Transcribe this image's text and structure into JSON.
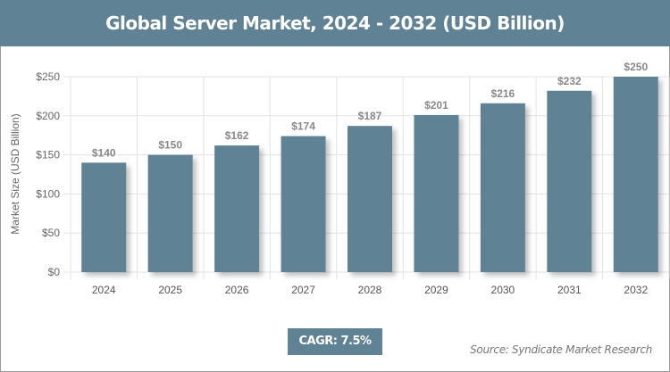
{
  "title": "Global Server Market, 2024 - 2032 (USD Billion)",
  "cagr_label": "CAGR: 7.5%",
  "source": "Source: Syndicate Market Research",
  "colors": {
    "bar": "#5f8394",
    "header": "#5f8394"
  },
  "chart_data": {
    "type": "bar",
    "title": "Global Server Market, 2024 - 2032 (USD Billion)",
    "xlabel": "",
    "ylabel": "Market Size (USD Billion)",
    "categories": [
      "2024",
      "2025",
      "2026",
      "2027",
      "2028",
      "2029",
      "2030",
      "2031",
      "2032"
    ],
    "values": [
      140,
      150,
      162,
      174,
      187,
      201,
      216,
      232,
      250
    ],
    "data_labels": [
      "$140",
      "$150",
      "$162",
      "$174",
      "$187",
      "$201",
      "$216",
      "$232",
      "$250"
    ],
    "ylim": [
      0,
      250
    ],
    "yticks": [
      0,
      50,
      100,
      150,
      200,
      250
    ],
    "ytick_labels": [
      "$0",
      "$50",
      "$100",
      "$150",
      "$200",
      "$250"
    ],
    "grid": true,
    "legend": "none"
  }
}
